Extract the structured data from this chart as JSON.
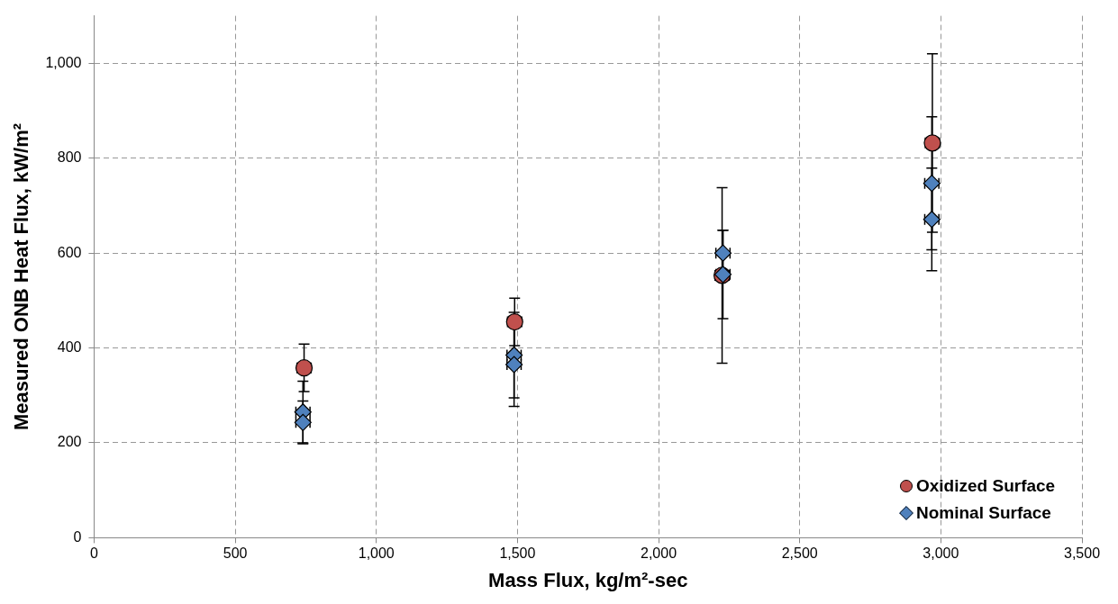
{
  "chart_data": {
    "type": "scatter",
    "xlabel": "Mass Flux, kg/m²-sec",
    "ylabel": "Measured ONB Heat Flux, kW/m²",
    "xlim": [
      0,
      3500
    ],
    "xticks": [
      0,
      500,
      {
        "value": 1000,
        "label": "1,000"
      },
      {
        "value": 1500,
        "label": "1,500"
      },
      {
        "value": 2000,
        "label": "2,000"
      },
      {
        "value": 2500,
        "label": "2,500"
      },
      {
        "value": 3000,
        "label": "3,000"
      },
      {
        "value": 3500,
        "label": "3,500"
      }
    ],
    "ylim": [
      0,
      1100
    ],
    "yticks": [
      0,
      200,
      400,
      600,
      800,
      {
        "value": 1000,
        "label": "1,000"
      }
    ],
    "grid": true,
    "legend": "bottom right",
    "series": [
      {
        "name": "Oxidized Surface",
        "color": "#c0504d",
        "marker": "circle",
        "x": [
          744,
          1490,
          2225,
          2970
        ],
        "values": [
          358,
          455,
          553,
          832
        ],
        "errors": [
          50,
          50,
          185,
          188
        ],
        "xerrors": [
          25,
          25,
          25,
          25
        ]
      },
      {
        "name": "Nominal Surface",
        "color": "#4f81bd",
        "marker": "diamond",
        "x": [
          740,
          740,
          1488,
          1488,
          2228,
          2228,
          2968,
          2968
        ],
        "values": [
          265,
          243,
          385,
          365,
          600,
          555,
          747,
          671
        ],
        "errors": [
          65,
          45,
          90,
          88,
          48,
          93,
          140,
          108
        ],
        "xerrors": [
          25,
          25,
          25,
          25,
          25,
          25,
          25,
          25
        ]
      }
    ]
  }
}
